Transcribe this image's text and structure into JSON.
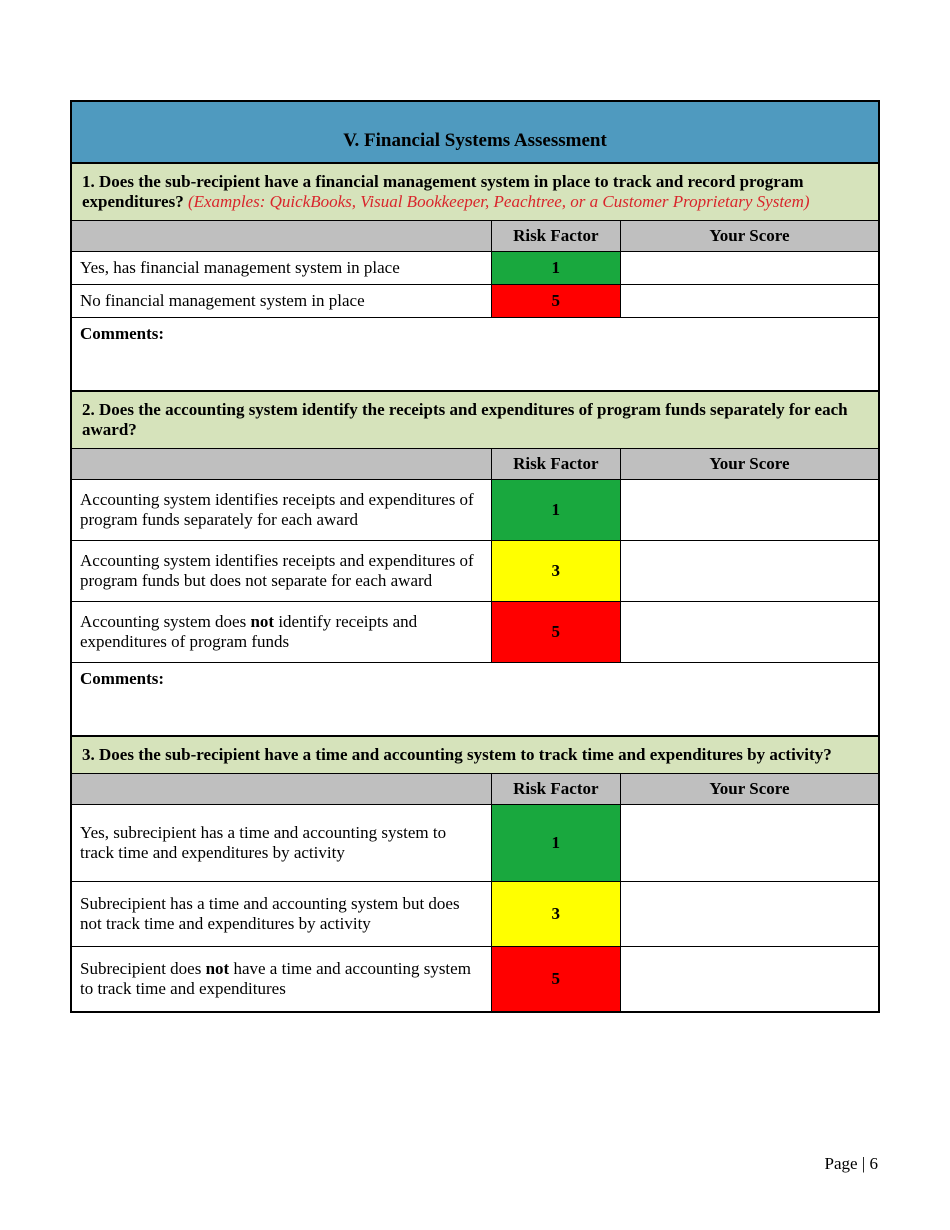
{
  "colors": {
    "title_bg": "#4f9abf",
    "question_bg": "#d6e3bb",
    "header_bg": "#bfbfbf",
    "risk_green": "#19a83e",
    "risk_yellow": "#ffff00",
    "risk_red": "#ff0000",
    "example_text": "#d9252b",
    "border": "#000000"
  },
  "title": "V. Financial Systems Assessment",
  "column_headers": {
    "option": "",
    "risk": "Risk Factor",
    "score": "Your Score"
  },
  "comments_label": "Comments:",
  "footer": "Page | 6",
  "questions": [
    {
      "number": "1.",
      "text": "Does the sub-recipient have a financial management system in place to track and record program expenditures?",
      "examples": "(Examples: QuickBooks, Visual Bookkeeper, Peachtree, or a Customer Proprietary System)",
      "options": [
        {
          "text": "Yes, has financial management system in place",
          "risk": "1",
          "risk_color": "green"
        },
        {
          "text": "No financial management system in place",
          "risk": "5",
          "risk_color": "red"
        }
      ]
    },
    {
      "number": "2.",
      "text": "Does the accounting system identify the receipts and expenditures of program funds separately for each award?",
      "examples": "",
      "options": [
        {
          "text": "Accounting system identifies receipts and expenditures of program funds separately for each award",
          "risk": "1",
          "risk_color": "green"
        },
        {
          "text": "Accounting system identifies receipts and expenditures of program funds but does not separate for each award",
          "risk": "3",
          "risk_color": "yellow"
        },
        {
          "text_pre": "Accounting system does ",
          "text_bold": "not",
          "text_post": " identify receipts and expenditures of program funds",
          "risk": "5",
          "risk_color": "red"
        }
      ]
    },
    {
      "number": "3.",
      "text": "Does the sub-recipient have a time and accounting system to track time and expenditures by activity?",
      "examples": "",
      "options": [
        {
          "text": "Yes, subrecipient has a time and accounting system to track time and expenditures by activity",
          "risk": "1",
          "risk_color": "green"
        },
        {
          "text": "Subrecipient has a time and accounting system but does not track time and expenditures by activity",
          "risk": "3",
          "risk_color": "yellow"
        },
        {
          "text_pre": "Subrecipient does ",
          "text_bold": "not",
          "text_post": " have a time and accounting system to track time and expenditures",
          "risk": "5",
          "risk_color": "red"
        }
      ],
      "no_comments": true
    }
  ]
}
